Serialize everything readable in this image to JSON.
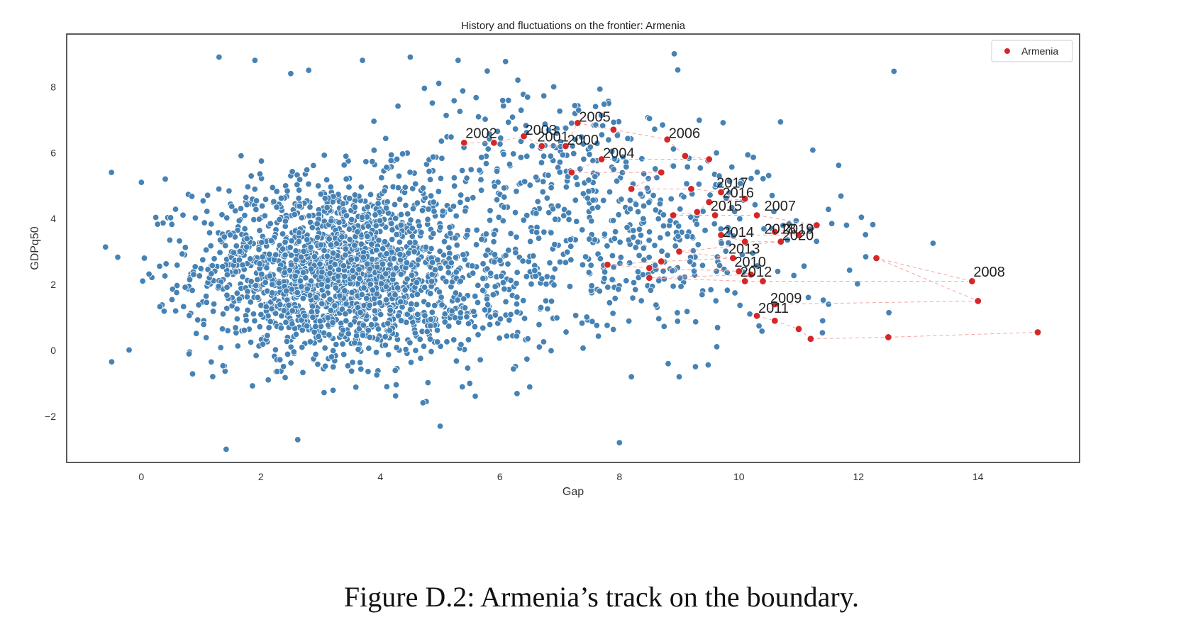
{
  "caption": "Figure D.2: Armenia’s track on the boundary.",
  "colors": {
    "background": "#ffffff",
    "scatter": "#4682b4",
    "armenia": "#d62728",
    "track": "#f4a6a6",
    "frame": "#333333"
  },
  "chart_data": {
    "type": "scatter",
    "title": "History and fluctuations on the frontier: Armenia",
    "xlabel": "Gap",
    "ylabel": "GDPq50",
    "xlim": [
      -1.25,
      15.7
    ],
    "ylim": [
      -3.4,
      9.6
    ],
    "xticks": [
      0,
      2,
      4,
      6,
      8,
      10,
      12,
      14
    ],
    "yticks": [
      -2,
      0,
      2,
      4,
      6,
      8
    ],
    "grid": false,
    "legend": {
      "position": "top-right",
      "entries": [
        "Armenia"
      ]
    },
    "background_points": {
      "count": 2600,
      "clusters": [
        {
          "cx": 3.2,
          "cy": 2.5,
          "sx": 1.15,
          "sy": 1.35,
          "weight": 0.62
        },
        {
          "cx": 4.6,
          "cy": 1.6,
          "sx": 1.3,
          "sy": 1.1,
          "weight": 0.15
        },
        {
          "cx": 6.8,
          "cy": 5.2,
          "sx": 1.6,
          "sy": 1.5,
          "weight": 0.13
        },
        {
          "cx": 8.7,
          "cy": 3.0,
          "sx": 1.5,
          "sy": 1.4,
          "weight": 0.1
        }
      ],
      "outliers": [
        [
          -0.5,
          5.4
        ],
        [
          0,
          5.1
        ],
        [
          0.4,
          5.2
        ],
        [
          1.3,
          8.9
        ],
        [
          1.9,
          8.8
        ],
        [
          2.5,
          8.4
        ],
        [
          2.8,
          8.5
        ],
        [
          3.7,
          8.8
        ],
        [
          4.5,
          8.9
        ],
        [
          5.3,
          8.8
        ],
        [
          5.0,
          -2.3
        ],
        [
          8.0,
          -2.8
        ],
        [
          8.2,
          -0.8
        ],
        [
          9.0,
          -0.8
        ],
        [
          11.8,
          3.8
        ],
        [
          11.5,
          1.4
        ],
        [
          11.4,
          0.9
        ],
        [
          6.3,
          8.2
        ],
        [
          6.9,
          8.0
        ],
        [
          7.6,
          7.4
        ],
        [
          0.05,
          2.8
        ]
      ]
    },
    "series": [
      {
        "name": "Armenia",
        "points": [
          [
            5.4,
            6.3
          ],
          [
            5.9,
            6.3
          ],
          [
            6.4,
            6.5
          ],
          [
            6.7,
            6.2
          ],
          [
            7.1,
            6.2
          ],
          [
            7.3,
            6.9
          ],
          [
            7.9,
            6.7
          ],
          [
            8.8,
            6.4
          ],
          [
            9.1,
            5.9
          ],
          [
            9.5,
            5.8
          ],
          [
            7.7,
            5.8
          ],
          [
            7.2,
            5.4
          ],
          [
            8.7,
            5.4
          ],
          [
            8.2,
            4.9
          ],
          [
            9.2,
            4.9
          ],
          [
            9.7,
            4.8
          ],
          [
            10.1,
            4.6
          ],
          [
            9.5,
            4.5
          ],
          [
            9.3,
            4.2
          ],
          [
            8.9,
            4.1
          ],
          [
            9.6,
            4.1
          ],
          [
            10.3,
            4.1
          ],
          [
            11.3,
            3.8
          ],
          [
            10.6,
            3.6
          ],
          [
            11.0,
            3.5
          ],
          [
            9.7,
            3.5
          ],
          [
            10.1,
            3.3
          ],
          [
            10.7,
            3.3
          ],
          [
            9.0,
            3.0
          ],
          [
            9.9,
            2.8
          ],
          [
            8.7,
            2.7
          ],
          [
            7.8,
            2.6
          ],
          [
            8.5,
            2.5
          ],
          [
            10.0,
            2.4
          ],
          [
            10.2,
            2.3
          ],
          [
            8.5,
            2.2
          ],
          [
            10.1,
            2.1
          ],
          [
            10.4,
            2.1
          ],
          [
            13.9,
            2.1
          ],
          [
            12.3,
            2.8
          ],
          [
            14.0,
            1.5
          ],
          [
            10.6,
            1.4
          ],
          [
            10.3,
            1.05
          ],
          [
            10.6,
            0.9
          ],
          [
            11.0,
            0.65
          ],
          [
            11.2,
            0.35
          ],
          [
            12.5,
            0.4
          ],
          [
            15.0,
            0.55
          ]
        ],
        "labels": [
          {
            "text": "2000",
            "x": 7.1,
            "y": 6.2
          },
          {
            "text": "2001",
            "x": 6.6,
            "y": 6.3
          },
          {
            "text": "2002",
            "x": 5.4,
            "y": 6.4
          },
          {
            "text": "2003",
            "x": 6.4,
            "y": 6.5
          },
          {
            "text": "2004",
            "x": 7.7,
            "y": 5.8
          },
          {
            "text": "2005",
            "x": 7.3,
            "y": 6.9
          },
          {
            "text": "2006",
            "x": 8.8,
            "y": 6.4
          },
          {
            "text": "2007",
            "x": 10.4,
            "y": 4.2
          },
          {
            "text": "2008",
            "x": 13.9,
            "y": 2.2
          },
          {
            "text": "2009",
            "x": 10.5,
            "y": 1.4
          },
          {
            "text": "2010",
            "x": 9.9,
            "y": 2.5
          },
          {
            "text": "2011",
            "x": 10.3,
            "y": 1.1
          },
          {
            "text": "2012",
            "x": 10.0,
            "y": 2.2
          },
          {
            "text": "2013",
            "x": 9.8,
            "y": 2.9
          },
          {
            "text": "2014",
            "x": 9.7,
            "y": 3.4
          },
          {
            "text": "2015",
            "x": 9.5,
            "y": 4.2
          },
          {
            "text": "2016",
            "x": 9.7,
            "y": 4.6
          },
          {
            "text": "2017",
            "x": 9.6,
            "y": 4.9
          },
          {
            "text": "2018",
            "x": 10.4,
            "y": 3.5
          },
          {
            "text": "2019",
            "x": 10.7,
            "y": 3.5
          },
          {
            "text": "2020",
            "x": 10.7,
            "y": 3.3
          }
        ]
      }
    ]
  }
}
